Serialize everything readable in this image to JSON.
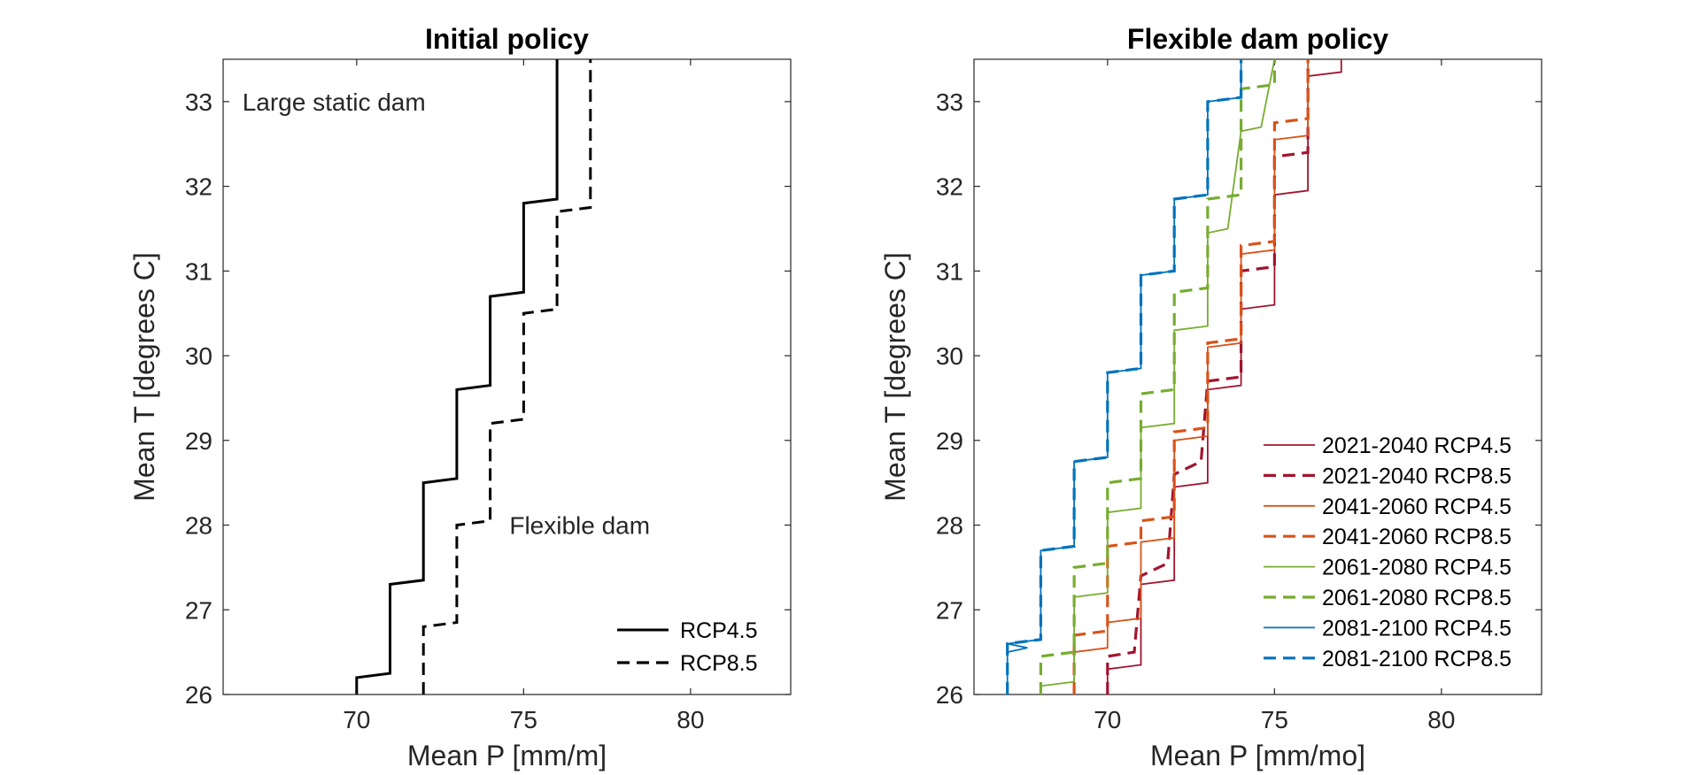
{
  "chart_data": [
    {
      "type": "line",
      "title": "Initial policy",
      "xlabel": "Mean P [mm/m]",
      "ylabel": "Mean T [degrees C]",
      "xlim": [
        66,
        83
      ],
      "ylim": [
        26,
        33.5
      ],
      "xticks": [
        "70",
        "75",
        "80"
      ],
      "yticks": [
        "26",
        "27",
        "28",
        "29",
        "30",
        "31",
        "32",
        "33"
      ],
      "grid": false,
      "legend_position": "bottom-right",
      "annotations": [
        {
          "text": "Large static dam",
          "x": 67,
          "y": 33
        },
        {
          "text": "Flexible dam",
          "x": 75,
          "y": 28
        }
      ],
      "series": [
        {
          "name": "RCP4.5",
          "color": "#000000",
          "dash": "solid",
          "points": [
            [
              70,
              26
            ],
            [
              70,
              26.2
            ],
            [
              71,
              26.25
            ],
            [
              71,
              27.3
            ],
            [
              72,
              27.35
            ],
            [
              72,
              28.5
            ],
            [
              73,
              28.55
            ],
            [
              73,
              29.6
            ],
            [
              74,
              29.65
            ],
            [
              74,
              30.7
            ],
            [
              75,
              30.75
            ],
            [
              75,
              31.8
            ],
            [
              76,
              31.85
            ],
            [
              76,
              33.5
            ]
          ]
        },
        {
          "name": "RCP8.5",
          "color": "#000000",
          "dash": "dashed",
          "points": [
            [
              72,
              26
            ],
            [
              72,
              26.8
            ],
            [
              73,
              26.85
            ],
            [
              73,
              28
            ],
            [
              74,
              28.05
            ],
            [
              74,
              29.2
            ],
            [
              75,
              29.25
            ],
            [
              75,
              30.5
            ],
            [
              76,
              30.55
            ],
            [
              76,
              31.7
            ],
            [
              77,
              31.75
            ],
            [
              77,
              33.5
            ]
          ]
        }
      ]
    },
    {
      "type": "line",
      "title": "Flexible dam policy",
      "xlabel": "Mean P [mm/mo]",
      "ylabel": "Mean T [degrees C]",
      "xlim": [
        66,
        83
      ],
      "ylim": [
        26,
        33.5
      ],
      "xticks": [
        "70",
        "75",
        "80"
      ],
      "yticks": [
        "26",
        "27",
        "28",
        "29",
        "30",
        "31",
        "32",
        "33"
      ],
      "grid": false,
      "legend_position": "bottom-right",
      "series": [
        {
          "name": "2021-2040 RCP4.5",
          "color": "#a2142f",
          "dash": "solid",
          "points": [
            [
              70,
              26
            ],
            [
              70,
              26.3
            ],
            [
              71,
              26.35
            ],
            [
              71,
              27.3
            ],
            [
              72,
              27.35
            ],
            [
              72,
              28.45
            ],
            [
              73,
              28.5
            ],
            [
              73,
              29.6
            ],
            [
              74,
              29.65
            ],
            [
              74,
              30.55
            ],
            [
              75,
              30.6
            ],
            [
              75,
              31.9
            ],
            [
              76,
              31.95
            ],
            [
              76,
              33.3
            ],
            [
              77,
              33.35
            ],
            [
              77,
              33.5
            ]
          ]
        },
        {
          "name": "2021-2040 RCP8.5",
          "color": "#a2142f",
          "dash": "dashed",
          "points": [
            [
              70,
              26
            ],
            [
              70,
              26.45
            ],
            [
              70.8,
              26.5
            ],
            [
              71,
              27.4
            ],
            [
              71.8,
              27.55
            ],
            [
              72,
              28.6
            ],
            [
              72.8,
              28.75
            ],
            [
              73,
              29.7
            ],
            [
              74,
              29.75
            ],
            [
              74,
              31
            ],
            [
              75,
              31.05
            ],
            [
              75,
              32.35
            ],
            [
              76,
              32.4
            ],
            [
              76,
              33.5
            ]
          ]
        },
        {
          "name": "2041-2060 RCP4.5",
          "color": "#d95319",
          "dash": "solid",
          "points": [
            [
              69,
              26
            ],
            [
              69,
              26.5
            ],
            [
              70,
              26.55
            ],
            [
              70,
              26.85
            ],
            [
              71,
              26.9
            ],
            [
              71,
              27.8
            ],
            [
              72,
              27.85
            ],
            [
              72,
              29
            ],
            [
              73,
              29.05
            ],
            [
              73,
              30.1
            ],
            [
              74,
              30.15
            ],
            [
              74,
              31.2
            ],
            [
              75,
              31.25
            ],
            [
              75,
              32.55
            ],
            [
              76,
              32.6
            ],
            [
              76,
              33.5
            ]
          ]
        },
        {
          "name": "2041-2060 RCP8.5",
          "color": "#d95319",
          "dash": "dashed",
          "points": [
            [
              69,
              26
            ],
            [
              69,
              26.7
            ],
            [
              70,
              26.75
            ],
            [
              70,
              27.75
            ],
            [
              71,
              27.8
            ],
            [
              71,
              28.05
            ],
            [
              72,
              28.1
            ],
            [
              72,
              29.1
            ],
            [
              73,
              29.15
            ],
            [
              73,
              30.15
            ],
            [
              74,
              30.2
            ],
            [
              74,
              31.3
            ],
            [
              75,
              31.35
            ],
            [
              75,
              32.75
            ],
            [
              76,
              32.8
            ],
            [
              76,
              33.5
            ]
          ]
        },
        {
          "name": "2061-2080 RCP4.5",
          "color": "#77ac30",
          "dash": "solid",
          "points": [
            [
              68,
              26
            ],
            [
              68,
              26.1
            ],
            [
              69,
              26.15
            ],
            [
              69,
              27.15
            ],
            [
              70,
              27.2
            ],
            [
              70,
              28.15
            ],
            [
              71,
              28.2
            ],
            [
              71,
              29.15
            ],
            [
              72,
              29.2
            ],
            [
              72,
              30.3
            ],
            [
              73,
              30.35
            ],
            [
              73,
              31.45
            ],
            [
              73.6,
              31.5
            ],
            [
              74,
              32.65
            ],
            [
              74.6,
              32.7
            ],
            [
              75,
              33.5
            ]
          ]
        },
        {
          "name": "2061-2080 RCP8.5",
          "color": "#77ac30",
          "dash": "dashed",
          "points": [
            [
              68,
              26
            ],
            [
              68,
              26.45
            ],
            [
              69,
              26.5
            ],
            [
              69,
              27.5
            ],
            [
              70,
              27.55
            ],
            [
              70,
              28.5
            ],
            [
              71,
              28.55
            ],
            [
              71,
              29.55
            ],
            [
              72,
              29.6
            ],
            [
              72,
              30.75
            ],
            [
              73,
              30.8
            ],
            [
              73,
              31.85
            ],
            [
              74,
              31.9
            ],
            [
              74,
              33.15
            ],
            [
              75,
              33.2
            ],
            [
              75,
              33.5
            ]
          ]
        },
        {
          "name": "2081-2100 RCP4.5",
          "color": "#0072bd",
          "dash": "solid",
          "points": [
            [
              67,
              26
            ],
            [
              67,
              26.5
            ],
            [
              67.6,
              26.55
            ],
            [
              67,
              26.6
            ],
            [
              68,
              26.65
            ],
            [
              68,
              27.7
            ],
            [
              69,
              27.75
            ],
            [
              69,
              28.75
            ],
            [
              70,
              28.8
            ],
            [
              70,
              29.8
            ],
            [
              71,
              29.85
            ],
            [
              71,
              30.95
            ],
            [
              72,
              31
            ],
            [
              72,
              31.85
            ],
            [
              73,
              31.9
            ],
            [
              73,
              33
            ],
            [
              74,
              33.05
            ],
            [
              74,
              33.5
            ]
          ]
        },
        {
          "name": "2081-2100 RCP8.5",
          "color": "#0072bd",
          "dash": "dashed",
          "points": [
            [
              67,
              26
            ],
            [
              67,
              26.6
            ],
            [
              68,
              26.65
            ],
            [
              68,
              27.7
            ],
            [
              69,
              27.75
            ],
            [
              69,
              28.75
            ],
            [
              70,
              28.8
            ],
            [
              70,
              29.8
            ],
            [
              71,
              29.85
            ],
            [
              71,
              30.95
            ],
            [
              72,
              31
            ],
            [
              72,
              31.85
            ],
            [
              73,
              31.9
            ],
            [
              73,
              33
            ],
            [
              74,
              33.05
            ],
            [
              74,
              33.5
            ]
          ]
        }
      ]
    }
  ]
}
